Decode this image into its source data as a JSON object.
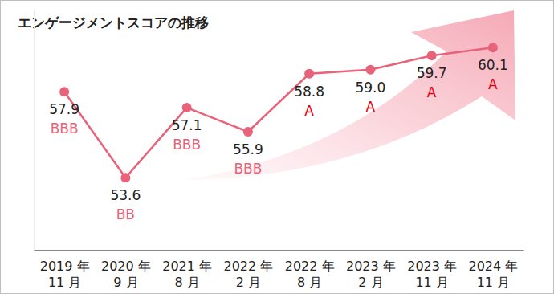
{
  "chart_data": {
    "type": "line",
    "title": "エンゲージメントスコアの推移",
    "categories": [
      "2019 年 11 月",
      "2020 年 9 月",
      "2021 年 8 月",
      "2022 年 2 月",
      "2022 年 8 月",
      "2023 年 2 月",
      "2023 年 11 月",
      "2024 年 11 月"
    ],
    "values": [
      57.9,
      53.6,
      57.1,
      55.9,
      58.8,
      59.0,
      59.7,
      60.1
    ],
    "value_labels": [
      "57.9",
      "53.6",
      "57.1",
      "55.9",
      "58.8",
      "59.0",
      "59.7",
      "60.1"
    ],
    "annotations": [
      {
        "text": "BBB",
        "color": "#e8637a"
      },
      {
        "text": "BB",
        "color": "#e8637a"
      },
      {
        "text": "BBB",
        "color": "#e8637a"
      },
      {
        "text": "BBB",
        "color": "#e8637a"
      },
      {
        "text": "A",
        "color": "#e60012"
      },
      {
        "text": "A",
        "color": "#e60012"
      },
      {
        "text": "A",
        "color": "#e60012"
      },
      {
        "text": "A",
        "color": "#e60012"
      }
    ],
    "color": "#e8637a",
    "marker": "circle",
    "line_style": "solid",
    "ylim": [
      50,
      62
    ],
    "yticks": [],
    "data_labels": true,
    "tick_labels": "x",
    "grid": false
  }
}
